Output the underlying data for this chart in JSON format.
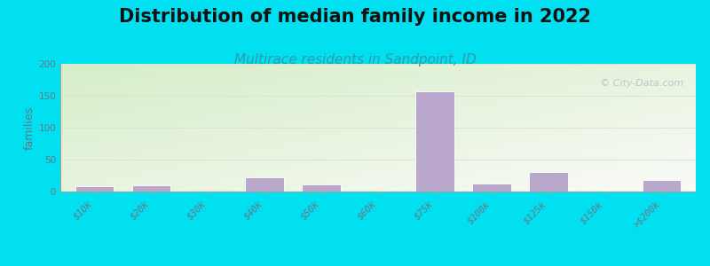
{
  "title": "Distribution of median family income in 2022",
  "subtitle": "Multirace residents in Sandpoint, ID",
  "watermark": "© City-Data.com",
  "categories": [
    "$10k",
    "$20k",
    "$30k",
    "$40k",
    "$50k",
    "$60k",
    "$75k",
    "$100k",
    "$125k",
    "$150k",
    ">$200k"
  ],
  "values": [
    8,
    10,
    0,
    22,
    11,
    0,
    157,
    12,
    30,
    0,
    18
  ],
  "bar_color": "#b9a8cc",
  "bar_edge_color": "#ffffff",
  "ylabel": "families",
  "ylim": [
    0,
    200
  ],
  "yticks": [
    0,
    50,
    100,
    150,
    200
  ],
  "background_outer": "#00e0f0",
  "background_inner_topleft": "#d6eec8",
  "background_inner_bottomright": "#f8f8f5",
  "title_fontsize": 15,
  "subtitle_fontsize": 11,
  "subtitle_color": "#3399aa",
  "watermark_color": "#b0bebe",
  "tick_label_fontsize": 7.5,
  "tick_label_color": "#667788",
  "ylabel_color": "#667788",
  "ylabel_fontsize": 9,
  "grid_color": "#d8e8d0",
  "axis_line_color": "#99aa99",
  "title_color": "#111111"
}
